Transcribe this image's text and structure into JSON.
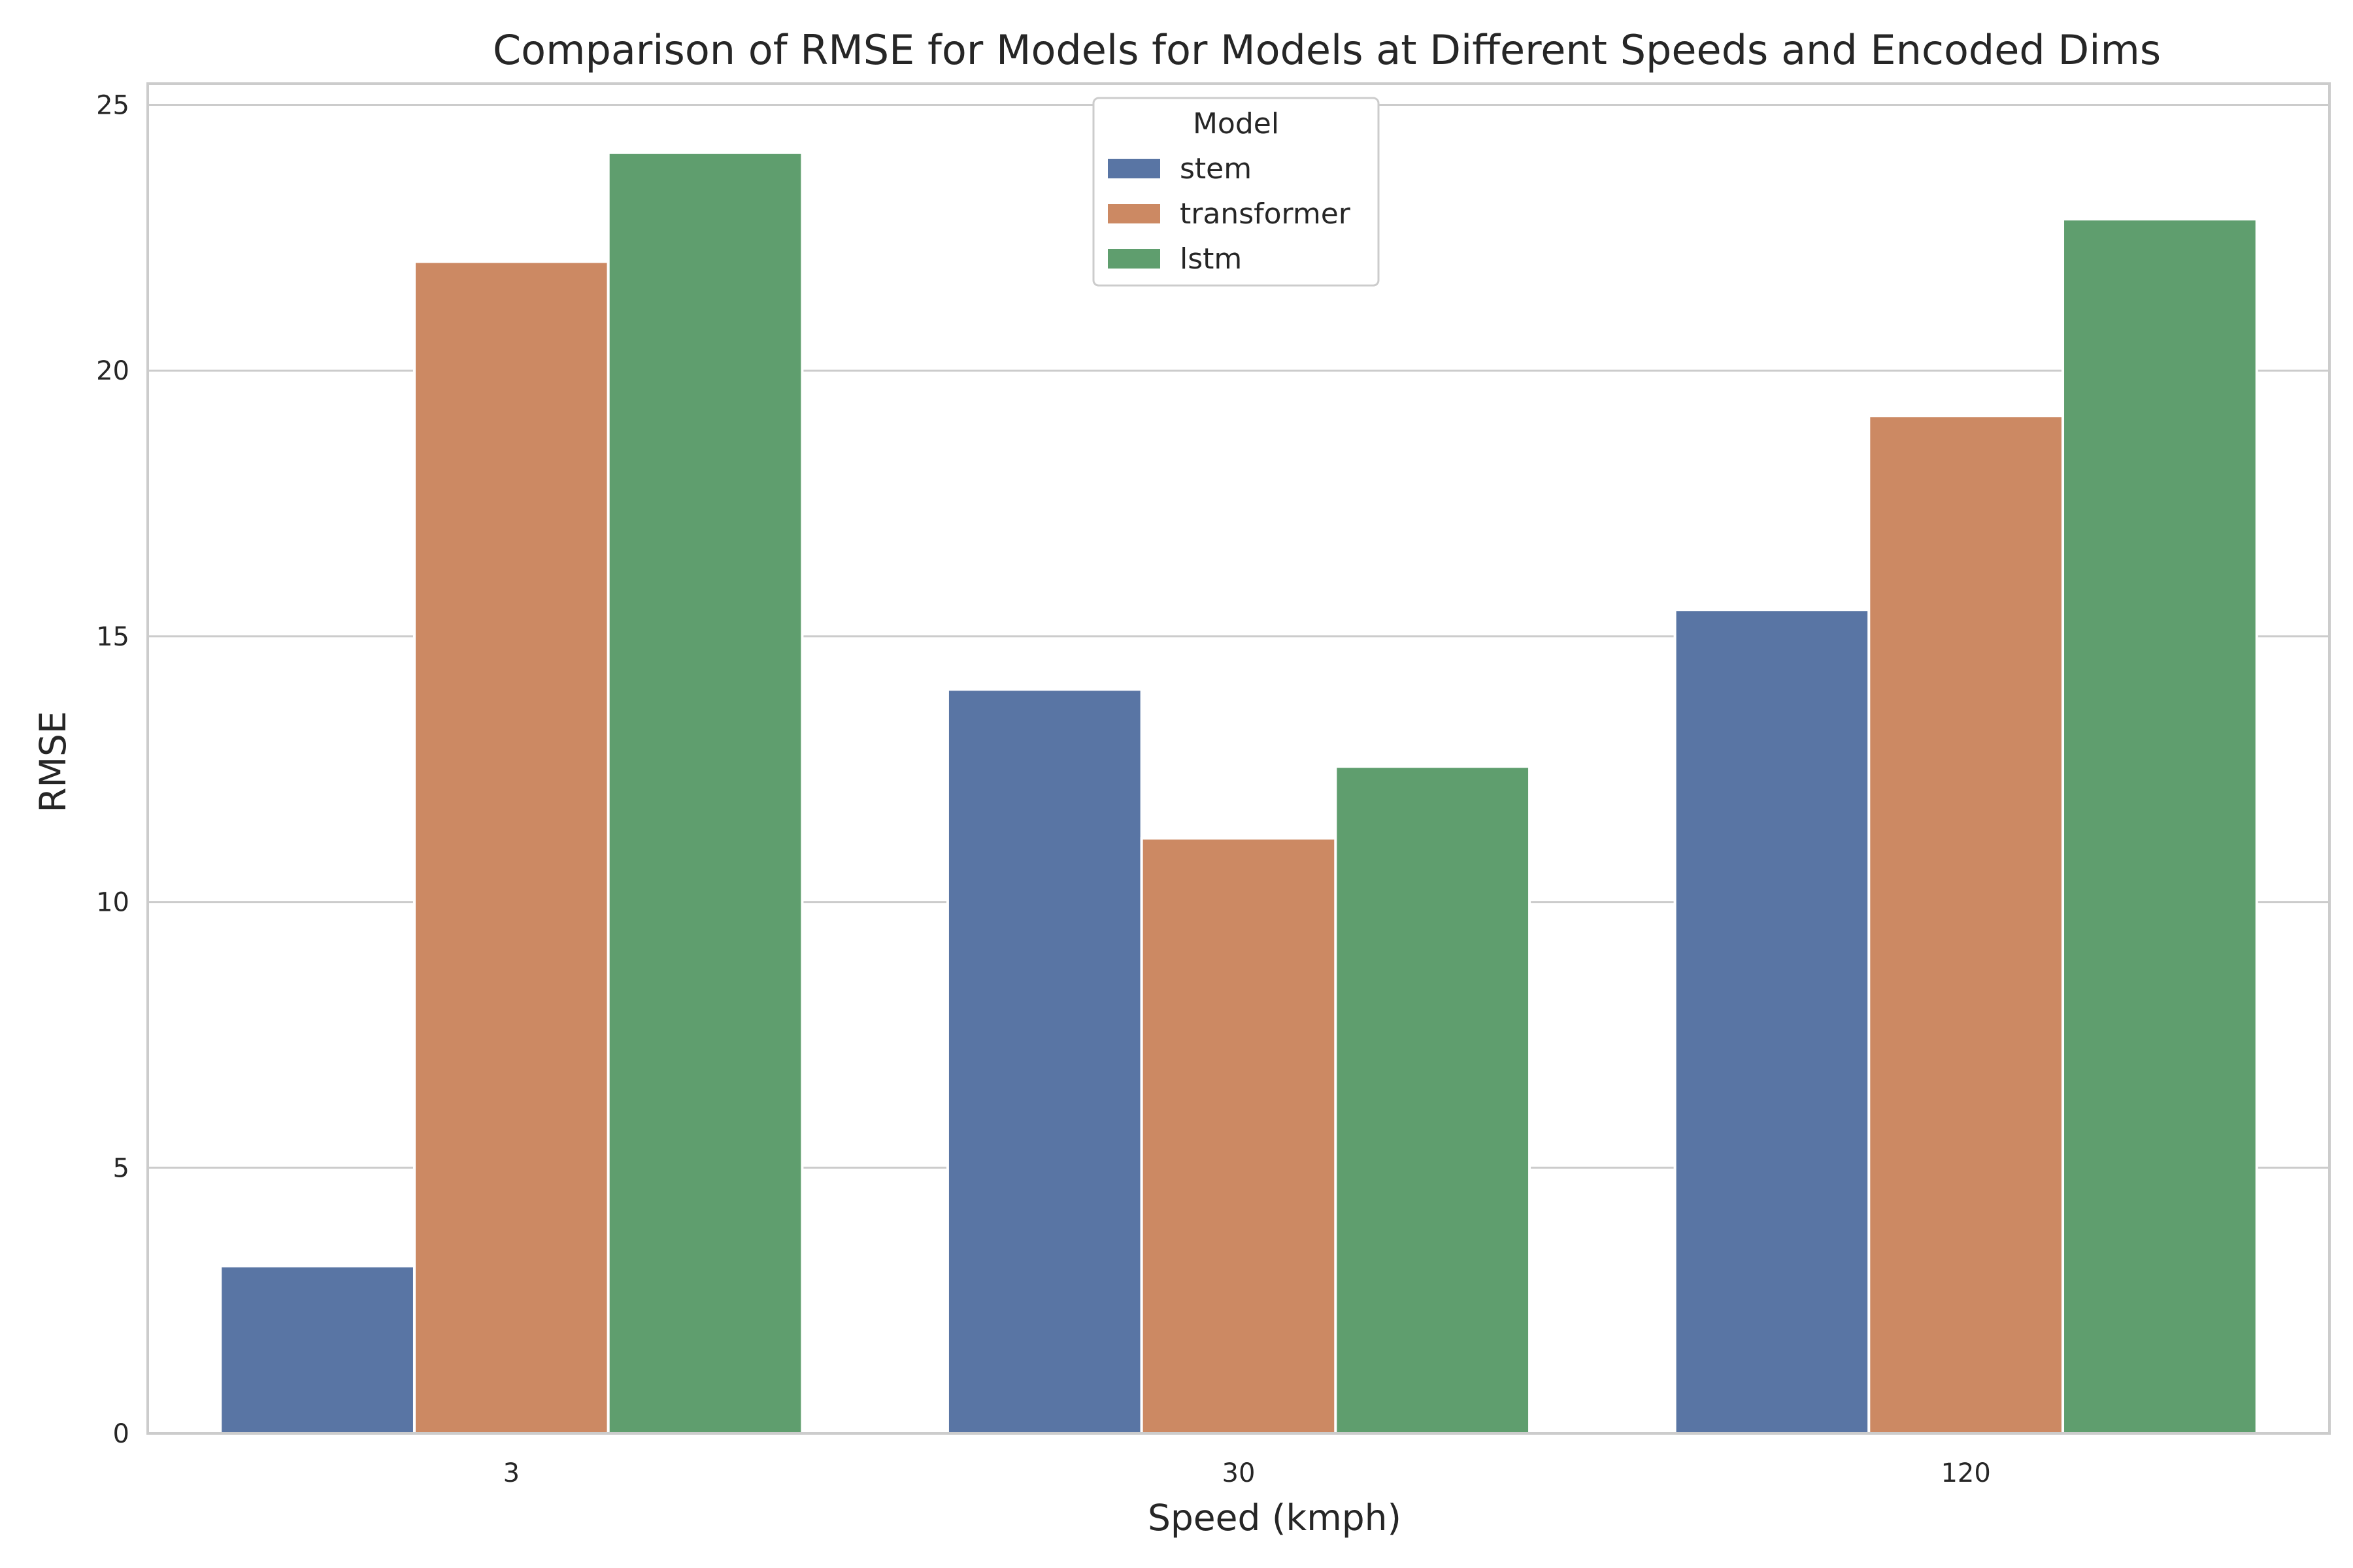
{
  "chart_data": {
    "type": "bar",
    "title": "Comparison of RMSE for Models for Models at Different Speeds and Encoded Dims",
    "xlabel": "Speed (kmph)",
    "ylabel": "RMSE",
    "categories": [
      "3",
      "30",
      "120"
    ],
    "ylim": [
      0,
      25.4
    ],
    "yticks": [
      0,
      5,
      10,
      15,
      20,
      25
    ],
    "grid": "horizontal",
    "legend": {
      "title": "Model",
      "placement": "top-center"
    },
    "series": [
      {
        "name": "stem",
        "color": "#5975a4",
        "values": [
          3.15,
          14.0,
          15.5
        ]
      },
      {
        "name": "transformer",
        "color": "#cc8963",
        "values": [
          22.05,
          11.2,
          19.15
        ]
      },
      {
        "name": "lstm",
        "color": "#5f9e6e",
        "values": [
          24.1,
          12.55,
          22.85
        ]
      }
    ]
  }
}
